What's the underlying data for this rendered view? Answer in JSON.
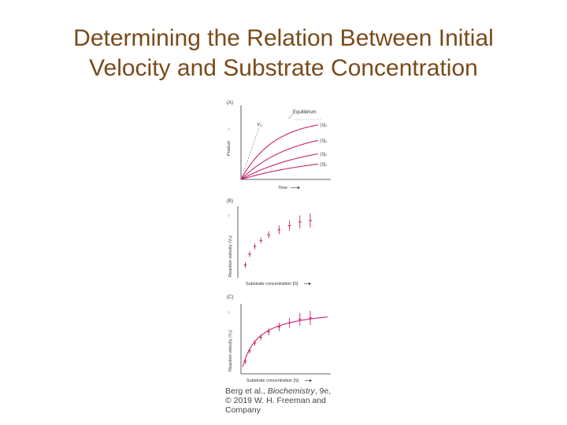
{
  "slide": {
    "title_line1": "Determining the Relation Between Initial",
    "title_line2": "Velocity and Substrate Concentration"
  },
  "colors": {
    "title": "#7a4a1a",
    "curve": "#c8246e",
    "axis": "#333333",
    "text": "#333333"
  },
  "chart_data": [
    {
      "panel": "(A)",
      "type": "line",
      "xlabel": "Time",
      "ylabel": "Product",
      "annotations": {
        "equilibrium": "Equilibrium",
        "v0": "V₀"
      },
      "series": [
        {
          "name": "[S]₄",
          "plateau": 0.82,
          "rate": 2.3
        },
        {
          "name": "[S]₃",
          "plateau": 0.68,
          "rate": 1.5
        },
        {
          "name": "[S]₂",
          "plateau": 0.52,
          "rate": 1.1
        },
        {
          "name": "[S]₁",
          "plateau": 0.35,
          "rate": 0.9
        }
      ]
    },
    {
      "panel": "(B)",
      "type": "scatter",
      "xlabel": "Substrate concentration [S]",
      "ylabel": "Reaction velocity (V₀)",
      "points": [
        {
          "x": 0.05,
          "y": 0.18,
          "err": 0.04
        },
        {
          "x": 0.1,
          "y": 0.33,
          "err": 0.04
        },
        {
          "x": 0.16,
          "y": 0.44,
          "err": 0.04
        },
        {
          "x": 0.23,
          "y": 0.52,
          "err": 0.04
        },
        {
          "x": 0.32,
          "y": 0.6,
          "err": 0.05
        },
        {
          "x": 0.44,
          "y": 0.67,
          "err": 0.06
        },
        {
          "x": 0.56,
          "y": 0.73,
          "err": 0.07
        },
        {
          "x": 0.68,
          "y": 0.78,
          "err": 0.09
        },
        {
          "x": 0.8,
          "y": 0.8,
          "err": 0.1
        }
      ]
    },
    {
      "panel": "(C)",
      "type": "line",
      "xlabel": "Substrate concentration [S]",
      "ylabel": "Reaction velocity (V₀)",
      "fit": {
        "vmax": 0.95,
        "km": 0.17
      },
      "points": [
        {
          "x": 0.05,
          "y": 0.18,
          "err": 0.04
        },
        {
          "x": 0.1,
          "y": 0.33,
          "err": 0.04
        },
        {
          "x": 0.16,
          "y": 0.44,
          "err": 0.04
        },
        {
          "x": 0.23,
          "y": 0.52,
          "err": 0.04
        },
        {
          "x": 0.32,
          "y": 0.6,
          "err": 0.05
        },
        {
          "x": 0.44,
          "y": 0.67,
          "err": 0.06
        },
        {
          "x": 0.56,
          "y": 0.73,
          "err": 0.07
        },
        {
          "x": 0.68,
          "y": 0.78,
          "err": 0.09
        },
        {
          "x": 0.8,
          "y": 0.8,
          "err": 0.1
        }
      ]
    }
  ],
  "credit": {
    "line1_prefix": "Berg et al., ",
    "line1_book": "Biochemistry",
    "line1_suffix": ", 9e,",
    "line2": "© 2019 W. H. Freeman and",
    "line3": "Company"
  }
}
